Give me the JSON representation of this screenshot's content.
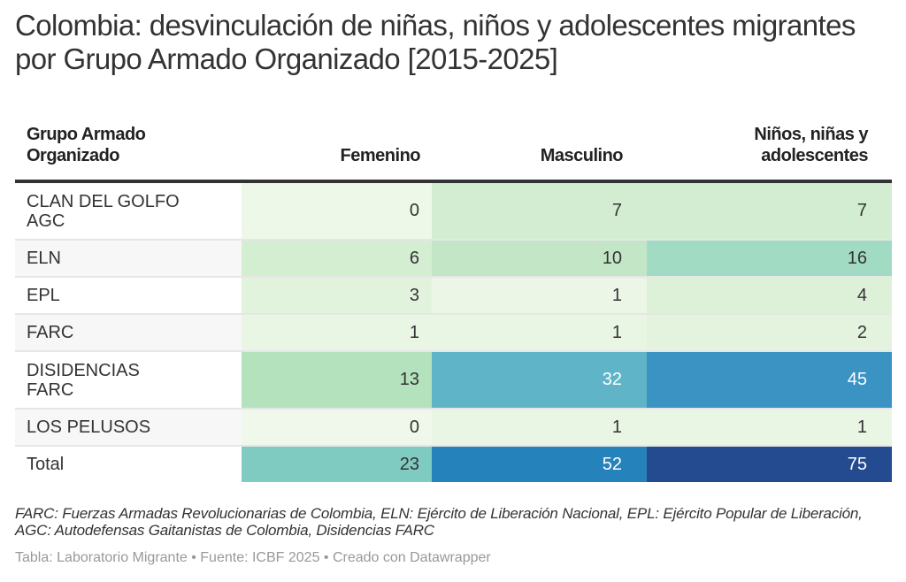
{
  "title": "Colombia: desvinculación de niñas, niños y adolescentes migrantes por Grupo Armado Organizado [2015-2025]",
  "headers": [
    "Grupo Armado Organizado",
    "Femenino",
    "Masculino",
    "Niños, niñas y adolescentes"
  ],
  "rows": [
    {
      "label": "CLAN DEL GOLFO AGC",
      "values": [
        0,
        7,
        7
      ],
      "colors": [
        "#eef8e9",
        "#d2edd1",
        "#d2edd1"
      ]
    },
    {
      "label": "ELN",
      "values": [
        6,
        10,
        16
      ],
      "colors": [
        "#d4eed2",
        "#c3e7c6",
        "#a2dbc4"
      ]
    },
    {
      "label": "EPL",
      "values": [
        3,
        1,
        4
      ],
      "colors": [
        "#e2f3dd",
        "#ebf6e6",
        "#ddf1d9"
      ]
    },
    {
      "label": "FARC",
      "values": [
        1,
        1,
        2
      ],
      "colors": [
        "#eaf6e4",
        "#eaf6e4",
        "#e3f3de"
      ]
    },
    {
      "label": "DISIDENCIAS FARC",
      "values": [
        13,
        32,
        45
      ],
      "colors": [
        "#b3e2bd",
        "#5fb5c7",
        "#3a93c3"
      ]
    },
    {
      "label": "LOS PELUSOS",
      "values": [
        0,
        1,
        1
      ],
      "colors": [
        "#eff8ea",
        "#eaf6e4",
        "#eaf6e4"
      ]
    },
    {
      "label": "Total",
      "values": [
        23,
        52,
        75
      ],
      "colors": [
        "#80cbc1",
        "#2682bb",
        "#244b8f"
      ]
    }
  ],
  "text_colors": {
    "dark": "#333333",
    "light": "#ffffff"
  },
  "notes": "FARC: Fuerzas Armadas Revolucionarias de Colombia, ELN: Ejército de Liberación Nacional, EPL: Ejército Popular de Liberación, AGC: Autodefensas Gaitanistas de Colombia, Disidencias FARC",
  "byline": "Tabla: Laboratorio Migrante • Fuente: ICBF 2025 • Creado con Datawrapper",
  "chart_data": {
    "type": "table",
    "title": "Colombia: desvinculación de niñas, niños y adolescentes migrantes por Grupo Armado Organizado [2015-2025]",
    "columns": [
      "Grupo Armado Organizado",
      "Femenino",
      "Masculino",
      "Niños, niñas y adolescentes"
    ],
    "categories": [
      "CLAN DEL GOLFO AGC",
      "ELN",
      "EPL",
      "FARC",
      "DISIDENCIAS FARC",
      "LOS PELUSOS",
      "Total"
    ],
    "series": [
      {
        "name": "Femenino",
        "values": [
          0,
          6,
          3,
          1,
          13,
          0,
          23
        ]
      },
      {
        "name": "Masculino",
        "values": [
          7,
          10,
          1,
          1,
          32,
          1,
          52
        ]
      },
      {
        "name": "Niños, niñas y adolescentes",
        "values": [
          7,
          16,
          4,
          2,
          45,
          1,
          75
        ]
      }
    ],
    "colorscale": "heatmap green-to-blue (low to high)"
  }
}
